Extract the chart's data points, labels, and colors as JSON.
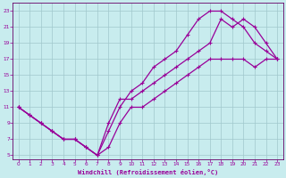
{
  "xlabel": "Windchill (Refroidissement éolien,°C)",
  "bg_color": "#c8ecee",
  "line_color": "#990099",
  "grid_color": "#a0c8cc",
  "axis_color": "#660066",
  "xlim": [
    -0.5,
    23.5
  ],
  "ylim": [
    4.5,
    24.0
  ],
  "xticks": [
    0,
    1,
    2,
    3,
    4,
    5,
    6,
    7,
    8,
    9,
    10,
    11,
    12,
    13,
    14,
    15,
    16,
    17,
    18,
    19,
    20,
    21,
    22,
    23
  ],
  "yticks": [
    5,
    7,
    9,
    11,
    13,
    15,
    17,
    19,
    21,
    23
  ],
  "line1_x": [
    0,
    1,
    2,
    3,
    4,
    5,
    6,
    7,
    8,
    9,
    10,
    11,
    12,
    13,
    14,
    15,
    16,
    17,
    18,
    19,
    20,
    21,
    22,
    23
  ],
  "line1_y": [
    11,
    10,
    9,
    8,
    7,
    7,
    6,
    5,
    6,
    9,
    11,
    11,
    12,
    13,
    14,
    15,
    16,
    17,
    17,
    17,
    17,
    16,
    17,
    17
  ],
  "line2_x": [
    0,
    1,
    2,
    3,
    4,
    5,
    6,
    7,
    8,
    9,
    10,
    11,
    12,
    13,
    14,
    15,
    16,
    17,
    18,
    19,
    20,
    21,
    22,
    23
  ],
  "line2_y": [
    11,
    10,
    9,
    8,
    7,
    7,
    6,
    5,
    8,
    11,
    13,
    14,
    16,
    17,
    18,
    20,
    22,
    23,
    23,
    22,
    21,
    19,
    18,
    17
  ],
  "line3_x": [
    0,
    1,
    2,
    3,
    4,
    5,
    6,
    7,
    8,
    9,
    10,
    11,
    12,
    13,
    14,
    15,
    16,
    17,
    18,
    19,
    20,
    21,
    22,
    23
  ],
  "line3_y": [
    11,
    10,
    9,
    8,
    7,
    7,
    6,
    5,
    9,
    12,
    12,
    13,
    14,
    15,
    16,
    17,
    18,
    19,
    22,
    21,
    22,
    21,
    19,
    17
  ]
}
